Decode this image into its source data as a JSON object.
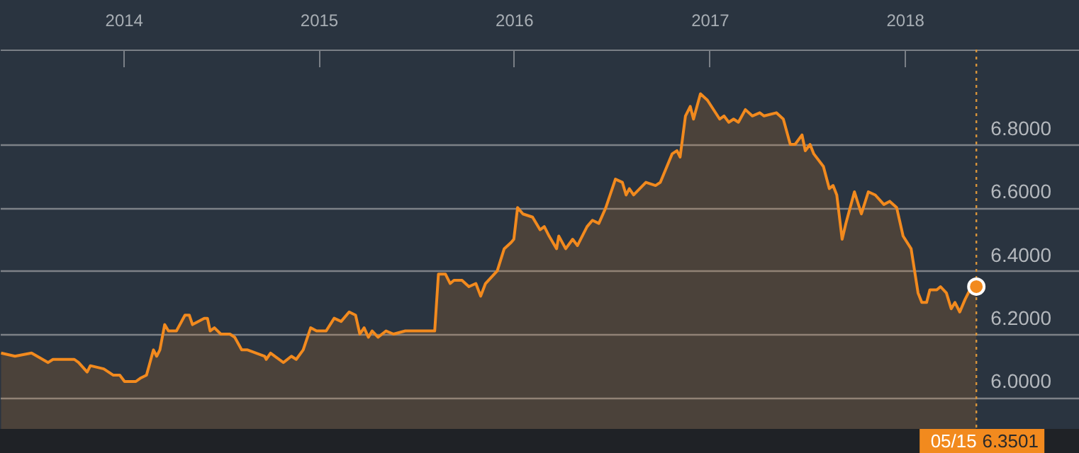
{
  "chart_data": {
    "type": "area",
    "x": [
      "2013-05-17",
      "2013-06-12",
      "2013-07-13",
      "2013-08-13",
      "2013-08-22",
      "2013-10-01",
      "2013-10-09",
      "2013-10-25",
      "2013-10-31",
      "2013-11-25",
      "2013-12-13",
      "2013-12-25",
      "2014-01-03",
      "2014-01-24",
      "2014-02-01",
      "2014-02-13",
      "2014-02-26",
      "2014-03-04",
      "2014-03-10",
      "2014-03-19",
      "2014-03-26",
      "2014-04-10",
      "2014-04-26",
      "2014-05-04",
      "2014-05-10",
      "2014-06-01",
      "2014-06-07",
      "2014-06-12",
      "2014-06-20",
      "2014-07-02",
      "2014-07-19",
      "2014-07-28",
      "2014-08-10",
      "2014-08-21",
      "2014-09-06",
      "2014-09-22",
      "2014-09-25",
      "2014-10-03",
      "2014-10-27",
      "2014-11-11",
      "2014-11-20",
      "2014-12-03",
      "2014-12-17",
      "2014-12-28",
      "2015-01-15",
      "2015-01-30",
      "2015-02-12",
      "2015-02-27",
      "2015-03-11",
      "2015-03-19",
      "2015-03-27",
      "2015-04-04",
      "2015-04-11",
      "2015-04-22",
      "2015-05-07",
      "2015-05-21",
      "2015-06-12",
      "2015-07-04",
      "2015-07-21",
      "2015-08-06",
      "2015-08-13",
      "2015-08-26",
      "2015-09-04",
      "2015-09-11",
      "2015-09-26",
      "2015-10-09",
      "2015-10-22",
      "2015-10-31",
      "2015-11-09",
      "2015-12-01",
      "2015-12-14",
      "2015-12-27",
      "2016-01-01",
      "2016-01-08",
      "2016-01-18",
      "2016-02-05",
      "2016-02-19",
      "2016-02-27",
      "2016-03-07",
      "2016-03-21",
      "2016-03-25",
      "2016-04-07",
      "2016-04-20",
      "2016-04-29",
      "2016-05-17",
      "2016-05-27",
      "2016-06-08",
      "2016-06-21",
      "2016-07-09",
      "2016-07-22",
      "2016-07-29",
      "2016-08-04",
      "2016-08-12",
      "2016-09-04",
      "2016-09-22",
      "2016-10-01",
      "2016-10-23",
      "2016-11-01",
      "2016-11-07",
      "2016-11-17",
      "2016-11-26",
      "2016-12-02",
      "2016-12-15",
      "2016-12-28",
      "2017-01-20",
      "2017-01-28",
      "2017-02-06",
      "2017-02-15",
      "2017-02-24",
      "2017-03-09",
      "2017-03-22",
      "2017-04-05",
      "2017-04-13",
      "2017-05-06",
      "2017-05-19",
      "2017-06-01",
      "2017-06-10",
      "2017-06-23",
      "2017-06-29",
      "2017-07-08",
      "2017-07-15",
      "2017-08-02",
      "2017-08-13",
      "2017-08-20",
      "2017-08-27",
      "2017-09-06",
      "2017-09-13",
      "2017-09-29",
      "2017-10-12",
      "2017-10-25",
      "2017-11-07",
      "2017-11-23",
      "2017-12-04",
      "2017-12-17",
      "2017-12-29",
      "2018-01-13",
      "2018-01-26",
      "2018-02-02",
      "2018-02-11",
      "2018-02-17",
      "2018-03-02",
      "2018-03-09",
      "2018-03-20",
      "2018-03-29",
      "2018-04-05",
      "2018-04-14",
      "2018-04-24",
      "2018-05-03",
      "2018-05-15"
    ],
    "series": [
      {
        "color": "#f28a1e",
        "values": [
          6.14,
          6.13,
          6.14,
          6.11,
          6.12,
          6.12,
          6.11,
          6.08,
          6.1,
          6.09,
          6.07,
          6.07,
          6.05,
          6.05,
          6.06,
          6.07,
          6.15,
          6.13,
          6.15,
          6.23,
          6.21,
          6.21,
          6.26,
          6.26,
          6.23,
          6.25,
          6.25,
          6.21,
          6.22,
          6.2,
          6.2,
          6.19,
          6.15,
          6.15,
          6.14,
          6.13,
          6.12,
          6.14,
          6.11,
          6.13,
          6.12,
          6.15,
          6.22,
          6.21,
          6.21,
          6.25,
          6.24,
          6.27,
          6.26,
          6.2,
          6.22,
          6.19,
          6.21,
          6.19,
          6.21,
          6.2,
          6.21,
          6.21,
          6.21,
          6.21,
          6.39,
          6.39,
          6.36,
          6.37,
          6.37,
          6.35,
          6.36,
          6.32,
          6.36,
          6.4,
          6.47,
          6.49,
          6.5,
          6.6,
          6.58,
          6.57,
          6.53,
          6.54,
          6.51,
          6.47,
          6.51,
          6.47,
          6.5,
          6.48,
          6.54,
          6.56,
          6.55,
          6.6,
          6.69,
          6.68,
          6.64,
          6.66,
          6.64,
          6.68,
          6.67,
          6.68,
          6.77,
          6.78,
          6.76,
          6.89,
          6.92,
          6.88,
          6.96,
          6.94,
          6.88,
          6.89,
          6.87,
          6.88,
          6.87,
          6.91,
          6.89,
          6.9,
          6.89,
          6.9,
          6.88,
          6.8,
          6.8,
          6.83,
          6.78,
          6.8,
          6.77,
          6.73,
          6.66,
          6.67,
          6.64,
          6.5,
          6.55,
          6.65,
          6.58,
          6.65,
          6.64,
          6.61,
          6.62,
          6.6,
          6.51,
          6.47,
          6.33,
          6.3,
          6.3,
          6.34,
          6.34,
          6.35,
          6.33,
          6.28,
          6.3,
          6.27,
          6.31,
          6.34,
          6.3501
        ]
      }
    ],
    "xlim": [
      "2013-05-15",
      "2018-11-23"
    ],
    "xticks": [
      "2014",
      "2015",
      "2016",
      "2017",
      "2018"
    ],
    "ylim": [
      5.9,
      7.1
    ],
    "yticks": [
      {
        "value": 6.0,
        "label": "6.0000"
      },
      {
        "value": 6.2,
        "label": "6.2000"
      },
      {
        "value": 6.4,
        "label": "6.4000"
      },
      {
        "value": 6.6,
        "label": "6.6000"
      },
      {
        "value": 6.8,
        "label": "6.8000"
      }
    ],
    "grid": "y",
    "ref_lines": [
      {
        "axis": "x",
        "value": "2018-05-15",
        "label": "05/15",
        "color": "#d8943a",
        "line_style": "dotted"
      }
    ],
    "annotations": [
      "6.3501"
    ]
  }
}
